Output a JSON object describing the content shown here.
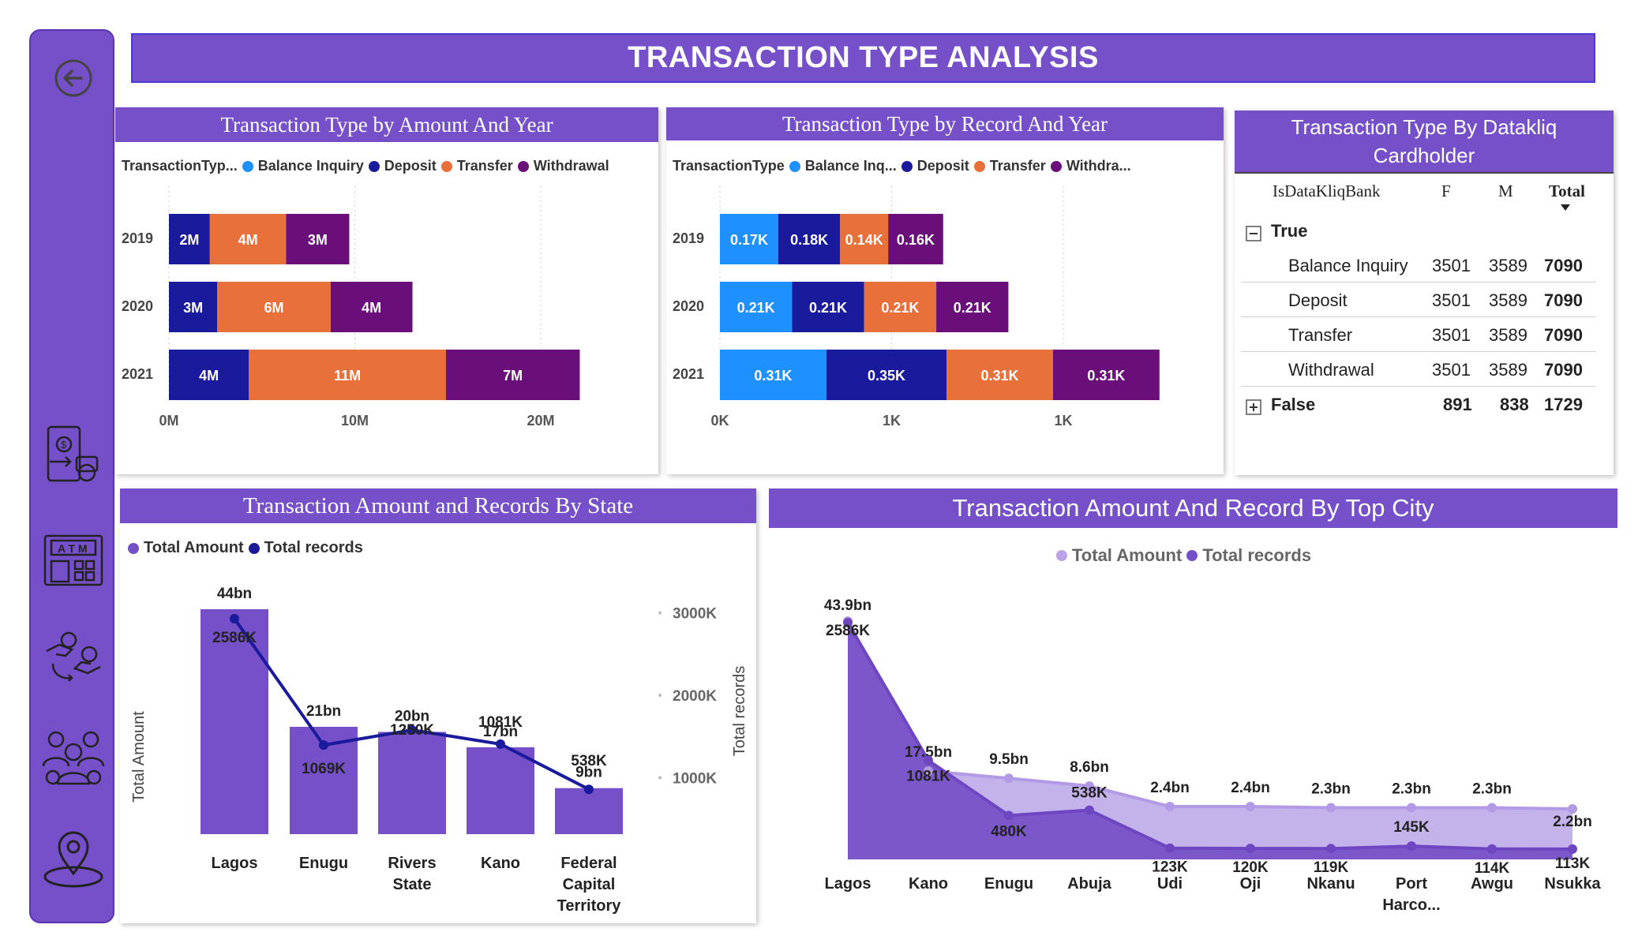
{
  "page": {
    "title": "TRANSACTION TYPE ANALYSIS"
  },
  "sidebar": {
    "back_icon": "back-arrow-icon",
    "items": [
      {
        "name": "transactions-nav-icon",
        "icon": "phone-money-icon"
      },
      {
        "name": "atm-nav-icon",
        "icon": "atm-icon"
      },
      {
        "name": "exchange-nav-icon",
        "icon": "hand-money-exchange-icon"
      },
      {
        "name": "customers-nav-icon",
        "icon": "people-group-icon"
      },
      {
        "name": "location-nav-icon",
        "icon": "map-pin-icon"
      }
    ]
  },
  "colors": {
    "accent": "#7650c8",
    "balance_inquiry": "#1e90ff",
    "deposit": "#1a1a9c",
    "transfer": "#e8703a",
    "withdrawal": "#6a0f7a"
  },
  "amount_by_year": {
    "title": "Transaction Type by Amount And Year",
    "legend_title": "TransactionTyp...",
    "legend": [
      "Balance Inquiry",
      "Deposit",
      "Transfer",
      "Withdrawal"
    ],
    "xticks": [
      "0M",
      "10M",
      "20M"
    ]
  },
  "record_by_year": {
    "title": "Transaction Type by Record And Year",
    "legend_title": "TransactionType",
    "legend": [
      "Balance Inq...",
      "Deposit",
      "Transfer",
      "Withdra..."
    ],
    "xticks": [
      "0K",
      "1K",
      "1K"
    ]
  },
  "datakliq": {
    "title": "Transaction Type By Datakliq Cardholder",
    "headers": {
      "label": "IsDataKliqBank",
      "f": "F",
      "m": "M",
      "total": "Total"
    },
    "groups": [
      {
        "label": "True",
        "expanded": true,
        "rows": [
          {
            "label": "Balance Inquiry",
            "f": "3501",
            "m": "3589",
            "total": "7090"
          },
          {
            "label": "Deposit",
            "f": "3501",
            "m": "3589",
            "total": "7090"
          },
          {
            "label": "Transfer",
            "f": "3501",
            "m": "3589",
            "total": "7090"
          },
          {
            "label": "Withdrawal",
            "f": "3501",
            "m": "3589",
            "total": "7090"
          }
        ]
      },
      {
        "label": "False",
        "expanded": false,
        "f": "891",
        "m": "838",
        "total": "1729"
      }
    ]
  },
  "state_chart": {
    "title": "Transaction Amount and Records By State",
    "legend": [
      "Total Amount",
      "Total records"
    ],
    "ylabel_left": "Total Amount",
    "ylabel_right": "Total records",
    "right_ticks": [
      "3000K",
      "2000K",
      "1000K"
    ]
  },
  "city_chart": {
    "title": "Transaction Amount And Record By Top City",
    "legend": [
      "Total Amount",
      "Total records"
    ]
  },
  "chart_data": [
    {
      "type": "bar",
      "orientation": "horizontal-stacked",
      "title": "Transaction Type by Amount And Year",
      "categories": [
        "2019",
        "2020",
        "2021"
      ],
      "series": [
        {
          "name": "Balance Inquiry",
          "values": [
            0,
            0,
            0
          ],
          "labels": [
            "",
            "",
            ""
          ]
        },
        {
          "name": "Deposit",
          "values": [
            2.2,
            2.6,
            4.3
          ],
          "labels": [
            "2M",
            "3M",
            "4M"
          ]
        },
        {
          "name": "Transfer",
          "values": [
            4.1,
            6.1,
            10.6
          ],
          "labels": [
            "4M",
            "6M",
            "11M"
          ]
        },
        {
          "name": "Withdrawal",
          "values": [
            3.4,
            4.4,
            7.2
          ],
          "labels": [
            "3M",
            "4M",
            "7M"
          ]
        }
      ],
      "xlim": [
        0,
        25
      ],
      "unit": "M"
    },
    {
      "type": "bar",
      "orientation": "horizontal-stacked",
      "title": "Transaction Type by Record And Year",
      "categories": [
        "2019",
        "2020",
        "2021"
      ],
      "series": [
        {
          "name": "Balance Inquiry",
          "values": [
            0.17,
            0.21,
            0.31
          ],
          "labels": [
            "0.17K",
            "0.21K",
            "0.31K"
          ]
        },
        {
          "name": "Deposit",
          "values": [
            0.18,
            0.21,
            0.35
          ],
          "labels": [
            "0.18K",
            "0.21K",
            "0.35K"
          ]
        },
        {
          "name": "Transfer",
          "values": [
            0.14,
            0.21,
            0.31
          ],
          "labels": [
            "0.14K",
            "0.21K",
            "0.31K"
          ]
        },
        {
          "name": "Withdrawal",
          "values": [
            0.16,
            0.21,
            0.31
          ],
          "labels": [
            "0.16K",
            "0.21K",
            "0.31K"
          ]
        }
      ],
      "xlim": [
        0,
        1.75
      ],
      "unit": "K"
    },
    {
      "type": "bar",
      "subtype": "bar-line-combo",
      "title": "Transaction Amount and Records By State",
      "categories": [
        "Lagos",
        "Enugu",
        "Rivers State",
        "Kano",
        "Federal Capital Territory"
      ],
      "series": [
        {
          "name": "Total Amount",
          "values": [
            44,
            21,
            20,
            17,
            9
          ],
          "labels": [
            "44bn",
            "21bn",
            "20bn",
            "17bn",
            "9bn"
          ],
          "unit": "bn"
        },
        {
          "name": "Total records",
          "values": [
            2586,
            1069,
            1250,
            1081,
            538
          ],
          "labels": [
            "2586K",
            "1069K",
            "1250K",
            "1081K",
            "538K"
          ],
          "unit": "K"
        }
      ],
      "ylim_left": [
        0,
        56
      ],
      "ylim_right": [
        0,
        3300
      ],
      "right_ticks": [
        3000,
        2000,
        1000
      ]
    },
    {
      "type": "area",
      "title": "Transaction Amount And Record By Top City",
      "categories": [
        "Lagos",
        "Kano",
        "Enugu",
        "Abuja",
        "Udi",
        "Oji",
        "Nkanu",
        "Port Harco...",
        "Awgu",
        "Nsukka"
      ],
      "series": [
        {
          "name": "Total Amount",
          "values": [
            43.9,
            17.5,
            9.5,
            8.6,
            2.4,
            2.4,
            2.3,
            2.3,
            2.3,
            2.2
          ],
          "labels": [
            "43.9bn",
            "17.5bn",
            "9.5bn",
            "8.6bn",
            "2.4bn",
            "2.4bn",
            "2.3bn",
            "2.3bn",
            "2.3bn",
            "2.2bn"
          ],
          "unit": "bn"
        },
        {
          "name": "Total records",
          "values": [
            2586,
            1081,
            480,
            538,
            123,
            120,
            119,
            145,
            114,
            113
          ],
          "labels": [
            "2586K",
            "1081K",
            "480K",
            "538K",
            "123K",
            "120K",
            "119K",
            "145K",
            "114K",
            "113K"
          ],
          "unit": "K"
        }
      ]
    }
  ]
}
